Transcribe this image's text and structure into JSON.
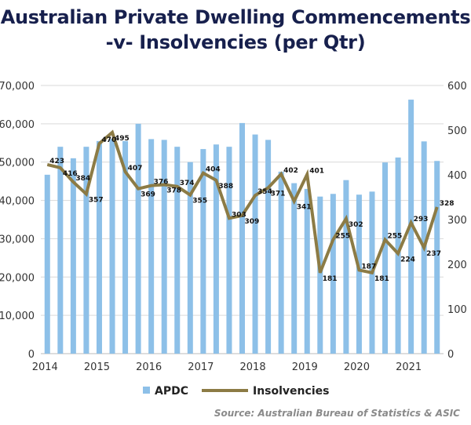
{
  "chart_data": {
    "type": "bar+line",
    "title_line1": "Australian Private Dwelling Commencements",
    "title_line2": "-v- Insolvencies (per Qtr)",
    "x_tick_labels": [
      "2014",
      "2015",
      "2016",
      "2017",
      "2018",
      "2019",
      "2020",
      "2021"
    ],
    "left_axis": {
      "ylim": [
        0,
        70000
      ],
      "ticks": [
        "0",
        "10,000",
        "20,000",
        "30,000",
        "40,000",
        "50,000",
        "60,000",
        "70,000"
      ]
    },
    "right_axis": {
      "ylim": [
        0,
        600
      ],
      "ticks": [
        "0",
        "100",
        "200",
        "300",
        "400",
        "500",
        "600"
      ]
    },
    "grid": true,
    "legend_position": "bottom",
    "series": [
      {
        "name": "APDC",
        "type": "bar",
        "axis": "left",
        "color": "#8dc0e8",
        "values": [
          46700,
          54000,
          51000,
          54000,
          55500,
          56000,
          55500,
          60000,
          56000,
          55800,
          54000,
          50000,
          53400,
          54600,
          54000,
          60200,
          57200,
          55800,
          47500,
          44500,
          43000,
          41000,
          41700,
          45300,
          41500,
          42300,
          49900,
          51200,
          66300,
          55400,
          50300
        ]
      },
      {
        "name": "Insolvencies",
        "type": "line",
        "axis": "right",
        "color": "#8c7b45",
        "values": [
          423,
          416,
          384,
          357,
          470,
          495,
          407,
          369,
          376,
          378,
          374,
          355,
          404,
          388,
          303,
          309,
          354,
          371,
          402,
          341,
          401,
          181,
          255,
          302,
          187,
          181,
          255,
          224,
          293,
          237,
          328
        ]
      }
    ],
    "source": "Source: Australian Bureau of Statistics & ASIC"
  }
}
